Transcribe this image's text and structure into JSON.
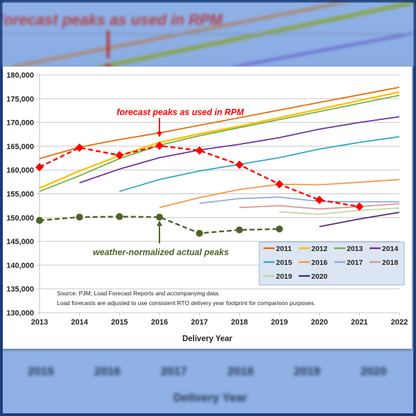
{
  "background": {
    "top_annotation": "forecast peaks as used in RPM",
    "bottom_ticks": [
      "2015",
      "2016",
      "2017",
      "2018",
      "2019",
      "2020"
    ],
    "bottom_xlabel": "Delivery Year"
  },
  "chart_data": {
    "type": "line",
    "title": "",
    "xlabel": "Delivery Year",
    "ylabel": "",
    "xlim": [
      2013,
      2022
    ],
    "ylim": [
      130000,
      180000
    ],
    "x_ticks": [
      "2013",
      "2014",
      "2015",
      "2016",
      "2017",
      "2018",
      "2019",
      "2020",
      "2021",
      "2022"
    ],
    "y_ticks": [
      "130,000",
      "135,000",
      "140,000",
      "145,000",
      "150,000",
      "155,000",
      "160,000",
      "165,000",
      "170,000",
      "175,000",
      "180,000"
    ],
    "grid": "horizontal",
    "legend_position": "bottom-right",
    "series": [
      {
        "name": "2011",
        "color": "#e46c0a",
        "x": [
          2013,
          2014,
          2015,
          2016,
          2017,
          2018,
          2019,
          2020,
          2021,
          2022
        ],
        "values": [
          162400,
          164800,
          166400,
          167800,
          169400,
          171000,
          172600,
          174200,
          175800,
          177400
        ]
      },
      {
        "name": "2012",
        "color": "#ffc000",
        "x": [
          2013,
          2014,
          2015,
          2016,
          2017,
          2018,
          2019,
          2020,
          2021,
          2022
        ],
        "values": [
          156200,
          159800,
          163000,
          165800,
          167600,
          169200,
          171000,
          172800,
          174600,
          176400
        ]
      },
      {
        "name": "2013",
        "color": "#77b041",
        "x": [
          2013,
          2014,
          2015,
          2016,
          2017,
          2018,
          2019,
          2020,
          2021,
          2022
        ],
        "values": [
          155500,
          158800,
          162400,
          165200,
          167200,
          168900,
          170600,
          172300,
          174000,
          175700
        ]
      },
      {
        "name": "2014",
        "color": "#7030a0",
        "x": [
          2014,
          2015,
          2016,
          2017,
          2018,
          2019,
          2020,
          2021,
          2022
        ],
        "values": [
          157300,
          160200,
          162600,
          164200,
          165400,
          166800,
          168600,
          170000,
          171200
        ]
      },
      {
        "name": "2015",
        "color": "#31a5c6",
        "x": [
          2015,
          2016,
          2017,
          2018,
          2019,
          2020,
          2021,
          2022
        ],
        "values": [
          155500,
          158000,
          159800,
          161200,
          162600,
          164400,
          165800,
          167000
        ]
      },
      {
        "name": "2016",
        "color": "#f79646",
        "x": [
          2016,
          2017,
          2018,
          2019,
          2020,
          2021,
          2022
        ],
        "values": [
          152100,
          154200,
          155900,
          157000,
          156900,
          157400,
          158000
        ]
      },
      {
        "name": "2017",
        "color": "#8faadc",
        "x": [
          2017,
          2018,
          2019,
          2020,
          2021,
          2022
        ],
        "values": [
          153000,
          154000,
          154300,
          153400,
          153300,
          153300
        ]
      },
      {
        "name": "2018",
        "color": "#da9694",
        "x": [
          2018,
          2019,
          2020,
          2021,
          2022
        ],
        "values": [
          152100,
          152500,
          151800,
          152300,
          152900
        ]
      },
      {
        "name": "2019",
        "color": "#c4d79b",
        "x": [
          2019,
          2020,
          2021,
          2022
        ],
        "values": [
          151200,
          150700,
          151500,
          152000
        ]
      },
      {
        "name": "2020",
        "color": "#4b2c73",
        "x": [
          2020,
          2021,
          2022
        ],
        "values": [
          148100,
          149700,
          151100
        ]
      }
    ],
    "highlight_series": [
      {
        "name": "forecast peaks as used in RPM",
        "color": "#ff0000",
        "marker": "diamond",
        "x": [
          2013,
          2014,
          2015,
          2016,
          2017,
          2018,
          2019,
          2020,
          2021
        ],
        "values": [
          160600,
          164700,
          163100,
          165100,
          164100,
          161100,
          157000,
          153700,
          152300
        ]
      },
      {
        "name": "weather-normalized actual peaks",
        "color": "#4f6228",
        "marker": "circle",
        "x": [
          2013,
          2014,
          2015,
          2016,
          2017,
          2018,
          2019
        ],
        "values": [
          149400,
          150100,
          150200,
          150100,
          146700,
          147400,
          147600
        ]
      }
    ],
    "annotations": [
      {
        "text": "forecast peaks as used in RPM",
        "points_to_year": 2016
      },
      {
        "text": "weather-normalized  actual peaks",
        "points_to_year": 2016
      }
    ],
    "source_note": [
      "Source: PJM; Load Forecast Reports and accompanying data.",
      "Load forecasts are adjusted to use consistent RTO delivery year footprint for comparison purposes."
    ]
  }
}
